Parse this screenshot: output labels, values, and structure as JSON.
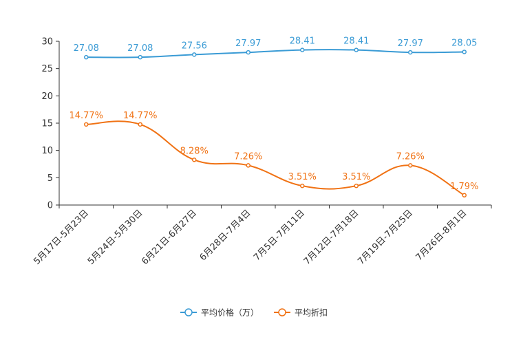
{
  "chart_data": {
    "type": "line",
    "categories": [
      "5月17日-5月23日",
      "5月24日-5月30日",
      "6月21日-6月27日",
      "6月28日-7月4日",
      "7月5日-7月11日",
      "7月12日-7月18日",
      "7月19日-7月25日",
      "7月26日-8月1日"
    ],
    "ylim": [
      0,
      30
    ],
    "yticks": [
      0,
      5,
      10,
      15,
      20,
      25,
      30
    ],
    "smooth": true,
    "grid": false,
    "legend_position": "bottom-center",
    "series": [
      {
        "name": "平均价格（万）",
        "color": "#3a9bd5",
        "values": [
          27.08,
          27.08,
          27.56,
          27.97,
          28.41,
          28.41,
          27.97,
          28.05
        ],
        "labels": [
          "27.08",
          "27.08",
          "27.56",
          "27.97",
          "28.41",
          "28.41",
          "27.97",
          "28.05"
        ]
      },
      {
        "name": "平均折扣",
        "color": "#f07214",
        "values": [
          14.77,
          14.77,
          8.28,
          7.26,
          3.51,
          3.51,
          7.26,
          1.79
        ],
        "labels": [
          "14.77%",
          "14.77%",
          "8.28%",
          "7.26%",
          "3.51%",
          "3.51%",
          "7.26%",
          "1.79%"
        ]
      }
    ]
  }
}
